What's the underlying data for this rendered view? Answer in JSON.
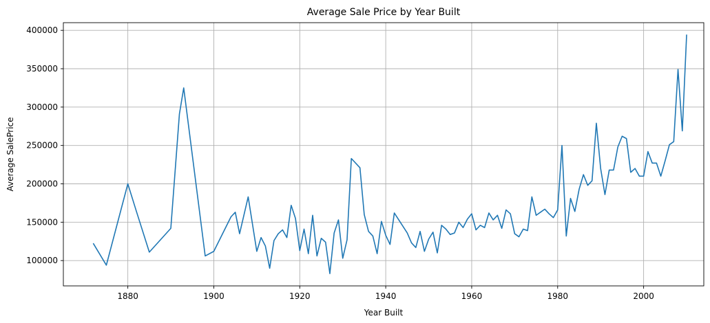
{
  "colors": {
    "series": "#1f77b4"
  },
  "chart_data": {
    "type": "line",
    "title": "Average Sale Price by Year Built",
    "xlabel": "Year Built",
    "ylabel": "Average SalePrice",
    "xlim": [
      1865,
      2014
    ],
    "ylim": [
      67000,
      410000
    ],
    "xticks": [
      1880,
      1900,
      1920,
      1940,
      1960,
      1980,
      2000
    ],
    "yticks": [
      100000,
      150000,
      200000,
      250000,
      300000,
      350000,
      400000
    ],
    "grid": true,
    "series": [
      {
        "x": [
          1872,
          1875,
          1880,
          1882,
          1885,
          1890,
          1892,
          1893,
          1898,
          1900,
          1904,
          1905,
          1906,
          1908,
          1910,
          1911,
          1912,
          1913,
          1914,
          1915,
          1916,
          1917,
          1918,
          1919,
          1920,
          1921,
          1922,
          1923,
          1924,
          1925,
          1926,
          1927,
          1928,
          1929,
          1930,
          1931,
          1932,
          1934,
          1935,
          1936,
          1937,
          1938,
          1939,
          1940,
          1941,
          1942,
          1945,
          1946,
          1947,
          1948,
          1949,
          1950,
          1951,
          1952,
          1953,
          1954,
          1955,
          1956,
          1957,
          1958,
          1959,
          1960,
          1961,
          1962,
          1963,
          1964,
          1965,
          1966,
          1967,
          1968,
          1969,
          1970,
          1971,
          1972,
          1973,
          1974,
          1975,
          1976,
          1977,
          1978,
          1979,
          1980,
          1981,
          1982,
          1983,
          1984,
          1985,
          1986,
          1987,
          1988,
          1989,
          1990,
          1991,
          1992,
          1993,
          1994,
          1995,
          1996,
          1997,
          1998,
          1999,
          2000,
          2001,
          2002,
          2003,
          2004,
          2005,
          2006,
          2007,
          2008,
          2009,
          2010
        ],
        "y": [
          122000,
          94000,
          200000,
          164000,
          111000,
          142000,
          291000,
          325000,
          106000,
          112000,
          157000,
          163000,
          135000,
          183000,
          112000,
          130000,
          119000,
          90000,
          126000,
          135000,
          140000,
          130000,
          172000,
          155000,
          113000,
          141000,
          109000,
          159000,
          106000,
          129000,
          124000,
          83000,
          136000,
          153000,
          103000,
          127000,
          233000,
          221000,
          160000,
          138000,
          132000,
          109000,
          151000,
          133000,
          121000,
          162000,
          136000,
          123000,
          117000,
          138000,
          112000,
          128000,
          137000,
          110000,
          146000,
          141000,
          134000,
          136000,
          150000,
          143000,
          154000,
          161000,
          140000,
          146000,
          143000,
          162000,
          153000,
          159000,
          142000,
          166000,
          161000,
          135000,
          131000,
          141000,
          139000,
          183000,
          159000,
          163000,
          167000,
          161000,
          156000,
          166000,
          250000,
          132000,
          181000,
          164000,
          193000,
          212000,
          198000,
          204000,
          279000,
          220000,
          186000,
          218000,
          218000,
          248000,
          262000,
          259000,
          215000,
          220000,
          210000,
          210000,
          242000,
          227000,
          227000,
          210000,
          230000,
          251000,
          255000,
          349000,
          269000,
          394000
        ]
      }
    ]
  }
}
